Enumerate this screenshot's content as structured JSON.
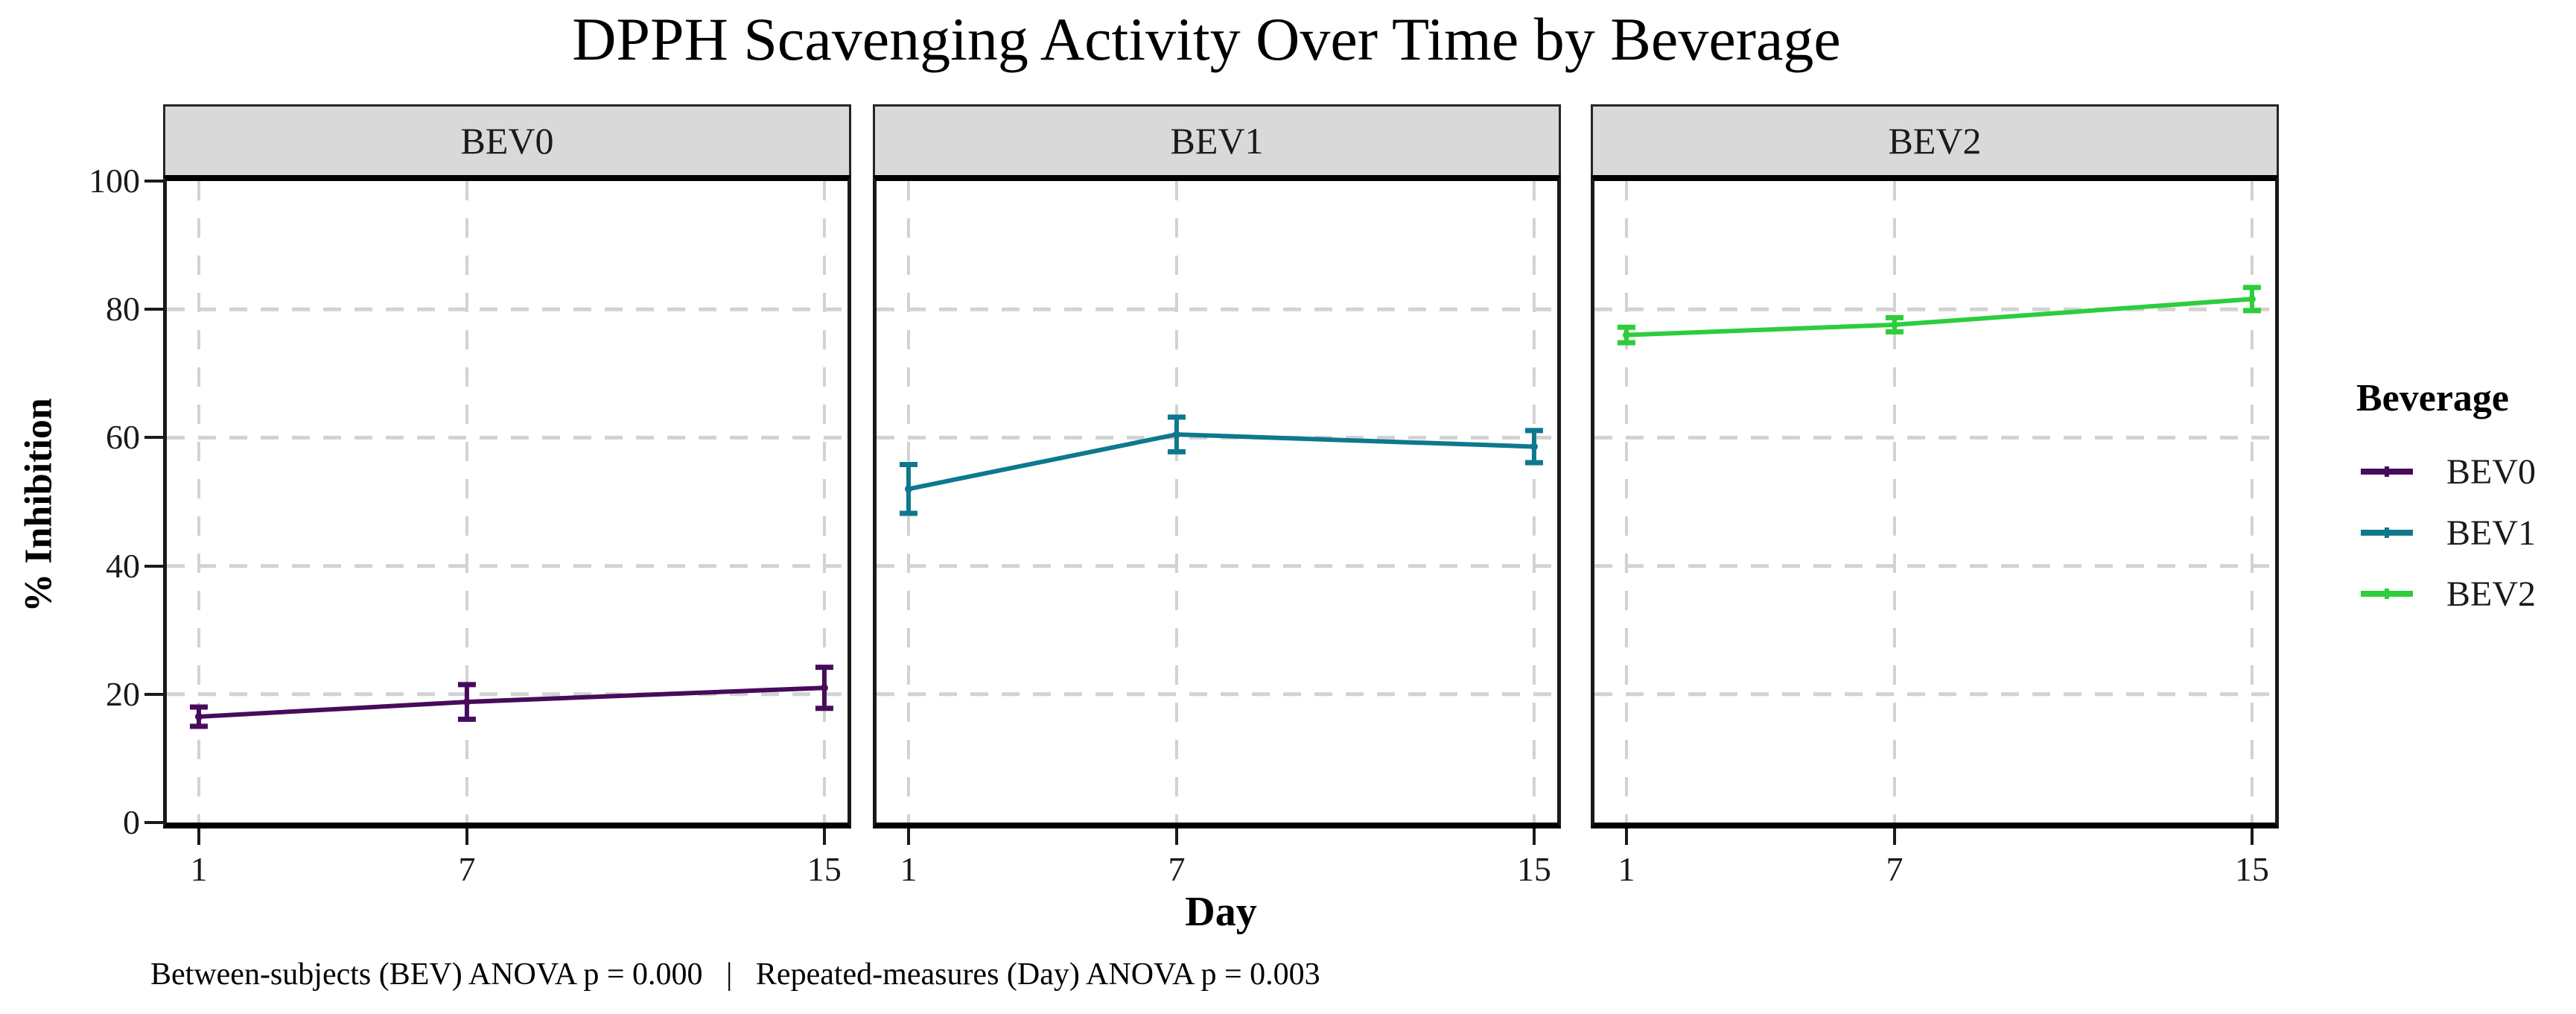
{
  "title": "DPPH Scavenging Activity Over Time by Beverage",
  "axes": {
    "x_label": "Day",
    "y_label": "% Inhibition",
    "x_ticks": [
      1,
      7,
      15
    ],
    "y_ticks": [
      0,
      20,
      40,
      60,
      80,
      100
    ]
  },
  "legend": {
    "title": "Beverage",
    "entries": [
      {
        "label": "BEV0",
        "color": "#470B5C"
      },
      {
        "label": "BEV1",
        "color": "#0E788E"
      },
      {
        "label": "BEV2",
        "color": "#2DCD3C"
      }
    ]
  },
  "caption": "Between-subjects (BEV) ANOVA p = 0.000   |   Repeated-measures (Day) ANOVA p = 0.003",
  "colors": {
    "grid": "#D2D2D2",
    "strip_fill": "#D9D9D9",
    "panel_border": "#000000"
  },
  "chart_data": {
    "type": "line",
    "title": "DPPH Scavenging Activity Over Time by Beverage",
    "xlabel": "Day",
    "ylabel": "% Inhibition",
    "xlim": [
      1,
      15
    ],
    "ylim": [
      0,
      100
    ],
    "xticks": [
      1,
      7,
      15
    ],
    "yticks": [
      0,
      20,
      40,
      60,
      80,
      100
    ],
    "grid": "dashed",
    "legend_position": "right",
    "facets": [
      {
        "label": "BEV0",
        "series": "BEV0",
        "color": "#470B5C",
        "x": [
          1,
          7,
          15
        ],
        "y": [
          16.5,
          18.8,
          21.0
        ],
        "yerr": [
          1.5,
          2.7,
          3.2
        ]
      },
      {
        "label": "BEV1",
        "series": "BEV1",
        "color": "#0E788E",
        "x": [
          1,
          7,
          15
        ],
        "y": [
          52.0,
          60.5,
          58.6
        ],
        "yerr": [
          3.8,
          2.7,
          2.5
        ]
      },
      {
        "label": "BEV2",
        "series": "BEV2",
        "color": "#2DCD3C",
        "x": [
          1,
          7,
          15
        ],
        "y": [
          76.0,
          77.6,
          81.6
        ],
        "yerr": [
          1.2,
          1.1,
          1.8
        ]
      }
    ]
  }
}
